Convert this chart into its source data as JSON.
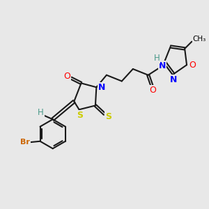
{
  "background_color": "#e8e8e8",
  "atom_colors": {
    "C": "#000000",
    "H": "#4a9a8a",
    "N": "#0000ff",
    "O": "#ff0000",
    "S": "#cccc00",
    "Br": "#cc6600",
    "default": "#000000"
  },
  "bond_color": "#1a1a1a",
  "bond_width": 1.5,
  "font_size_atom": 8.5,
  "title": ""
}
